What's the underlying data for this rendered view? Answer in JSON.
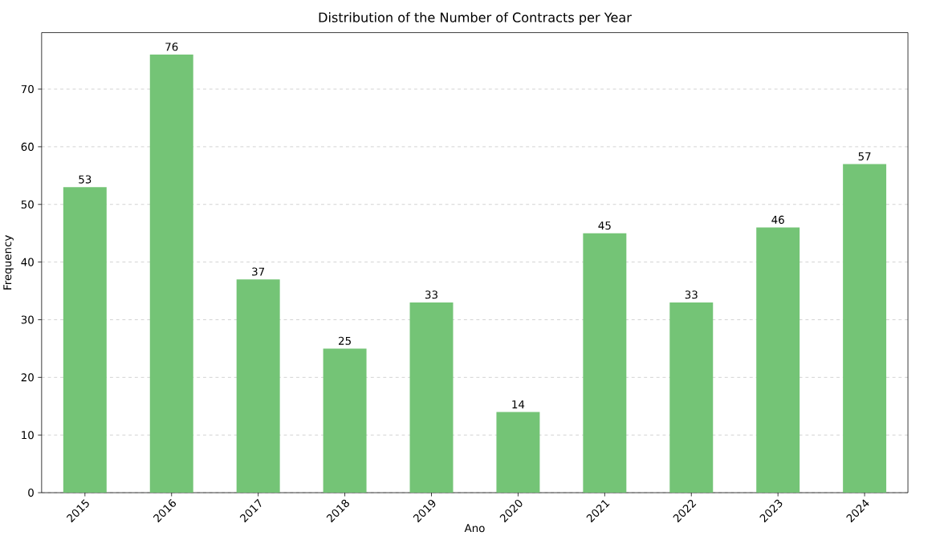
{
  "chart_data": {
    "type": "bar",
    "title": "Distribution of the Number of Contracts per Year",
    "xlabel": "Ano",
    "ylabel": "Frequency",
    "categories": [
      "2015",
      "2016",
      "2017",
      "2018",
      "2019",
      "2020",
      "2021",
      "2022",
      "2023",
      "2024"
    ],
    "values": [
      53,
      76,
      37,
      25,
      33,
      14,
      45,
      33,
      46,
      57
    ],
    "color": "#74c476",
    "ylim": [
      0,
      79.8
    ],
    "yticks": [
      0,
      10,
      20,
      30,
      40,
      50,
      60,
      70
    ],
    "grid": "y",
    "data_labels": true
  }
}
